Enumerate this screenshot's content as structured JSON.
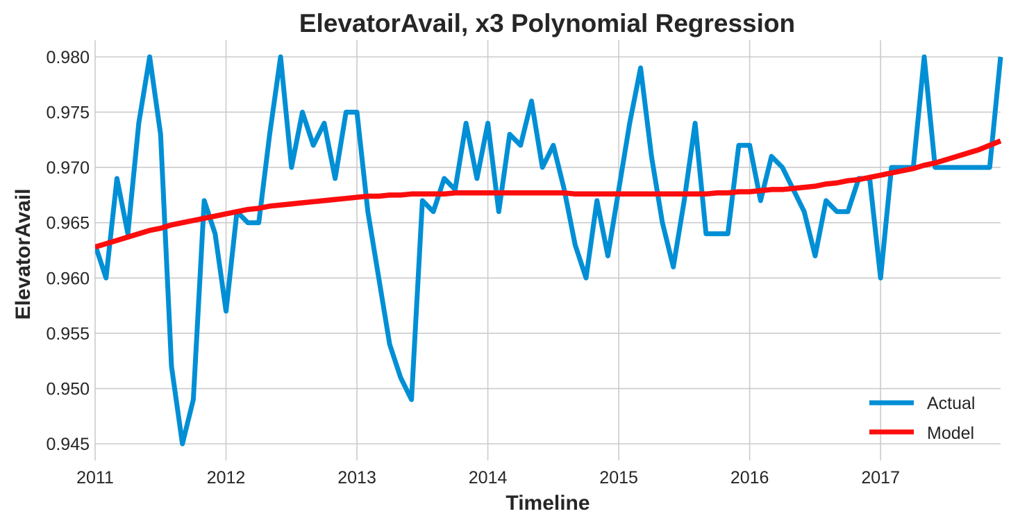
{
  "chart_data": {
    "type": "line",
    "title": "ElevatorAvail, x3 Polynomial Regression",
    "xlabel": "Timeline",
    "ylabel": "ElevatorAvail",
    "x_ticks": [
      "2011",
      "2012",
      "2013",
      "2014",
      "2015",
      "2016",
      "2017"
    ],
    "y_ticks": [
      "0.945",
      "0.950",
      "0.955",
      "0.960",
      "0.965",
      "0.970",
      "0.975",
      "0.980"
    ],
    "xlim": [
      "2011-01",
      "2017-12"
    ],
    "ylim": [
      0.9435,
      0.9815
    ],
    "grid": true,
    "legend_position": "bottom-right",
    "x": [
      "2011-01",
      "2011-02",
      "2011-03",
      "2011-04",
      "2011-05",
      "2011-06",
      "2011-07",
      "2011-08",
      "2011-09",
      "2011-10",
      "2011-11",
      "2011-12",
      "2012-01",
      "2012-02",
      "2012-03",
      "2012-04",
      "2012-05",
      "2012-06",
      "2012-07",
      "2012-08",
      "2012-09",
      "2012-10",
      "2012-11",
      "2012-12",
      "2013-01",
      "2013-02",
      "2013-03",
      "2013-04",
      "2013-05",
      "2013-06",
      "2013-07",
      "2013-08",
      "2013-09",
      "2013-10",
      "2013-11",
      "2013-12",
      "2014-01",
      "2014-02",
      "2014-03",
      "2014-04",
      "2014-05",
      "2014-06",
      "2014-07",
      "2014-08",
      "2014-09",
      "2014-10",
      "2014-11",
      "2014-12",
      "2015-01",
      "2015-02",
      "2015-03",
      "2015-04",
      "2015-05",
      "2015-06",
      "2015-07",
      "2015-08",
      "2015-09",
      "2015-10",
      "2015-11",
      "2015-12",
      "2016-01",
      "2016-02",
      "2016-03",
      "2016-04",
      "2016-05",
      "2016-06",
      "2016-07",
      "2016-08",
      "2016-09",
      "2016-10",
      "2016-11",
      "2016-12",
      "2017-01",
      "2017-02",
      "2017-03",
      "2017-04",
      "2017-05",
      "2017-06",
      "2017-07",
      "2017-08",
      "2017-09",
      "2017-10",
      "2017-11",
      "2017-12"
    ],
    "series": [
      {
        "name": "Actual",
        "color": "#008fd5",
        "values": [
          0.963,
          0.96,
          0.969,
          0.964,
          0.974,
          0.98,
          0.973,
          0.952,
          0.945,
          0.949,
          0.967,
          0.964,
          0.957,
          0.966,
          0.965,
          0.965,
          0.973,
          0.98,
          0.97,
          0.975,
          0.972,
          0.974,
          0.969,
          0.975,
          0.975,
          0.966,
          0.96,
          0.954,
          0.951,
          0.949,
          0.967,
          0.966,
          0.969,
          0.968,
          0.974,
          0.969,
          0.974,
          0.966,
          0.973,
          0.972,
          0.976,
          0.97,
          0.972,
          0.968,
          0.963,
          0.96,
          0.967,
          0.962,
          0.968,
          0.974,
          0.979,
          0.971,
          0.965,
          0.961,
          0.967,
          0.974,
          0.964,
          0.964,
          0.964,
          0.972,
          0.972,
          0.967,
          0.971,
          0.97,
          0.968,
          0.966,
          0.962,
          0.967,
          0.966,
          0.966,
          0.969,
          0.969,
          0.96,
          0.97,
          0.97,
          0.97,
          0.98,
          0.97,
          0.97,
          0.97,
          0.97,
          0.97,
          0.97,
          0.98
        ]
      },
      {
        "name": "Model",
        "color": "#fc0d0d",
        "values": [
          0.9628,
          0.9631,
          0.9634,
          0.9637,
          0.964,
          0.9643,
          0.9645,
          0.9648,
          0.965,
          0.9652,
          0.9654,
          0.9656,
          0.9658,
          0.966,
          0.9662,
          0.9663,
          0.9665,
          0.9666,
          0.9667,
          0.9668,
          0.9669,
          0.967,
          0.9671,
          0.9672,
          0.9673,
          0.9674,
          0.9674,
          0.9675,
          0.9675,
          0.9676,
          0.9676,
          0.9676,
          0.9676,
          0.9677,
          0.9677,
          0.9677,
          0.9677,
          0.9677,
          0.9677,
          0.9677,
          0.9677,
          0.9677,
          0.9677,
          0.9677,
          0.9676,
          0.9676,
          0.9676,
          0.9676,
          0.9676,
          0.9676,
          0.9676,
          0.9676,
          0.9676,
          0.9676,
          0.9676,
          0.9676,
          0.9676,
          0.9677,
          0.9677,
          0.9678,
          0.9678,
          0.9679,
          0.968,
          0.968,
          0.9681,
          0.9682,
          0.9683,
          0.9685,
          0.9686,
          0.9688,
          0.9689,
          0.9691,
          0.9693,
          0.9695,
          0.9697,
          0.9699,
          0.9702,
          0.9704,
          0.9707,
          0.971,
          0.9713,
          0.9716,
          0.972,
          0.9724
        ]
      }
    ]
  }
}
